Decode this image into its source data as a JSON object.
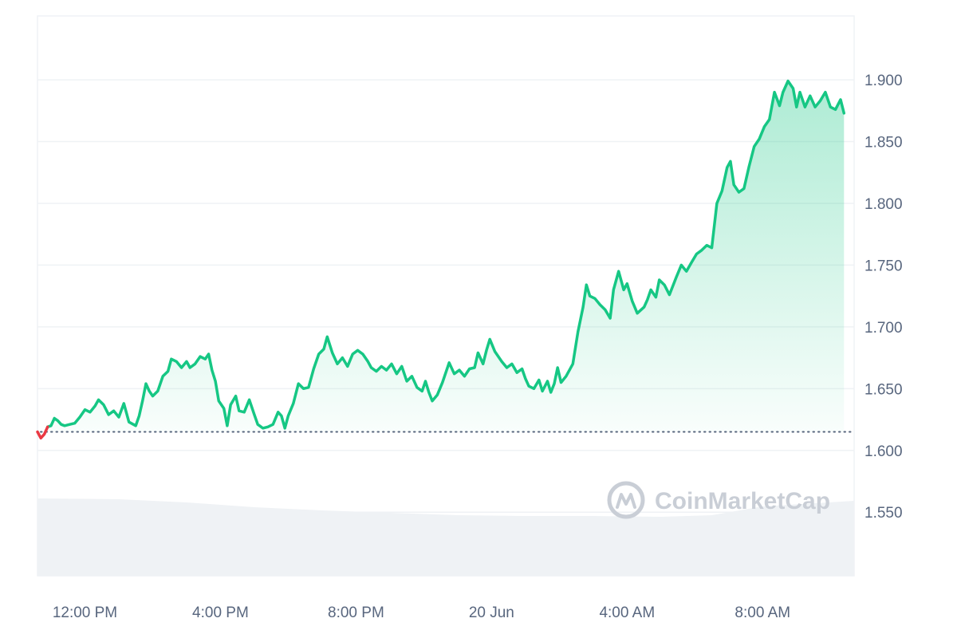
{
  "watermark": "CoinMarketCap",
  "colors": {
    "up": "#16c784",
    "down": "#ea3943",
    "grid": "#eff2f5",
    "text": "#58667e",
    "volume": "#eff2f5",
    "baseline": "#58667e"
  },
  "chart_data": {
    "type": "area",
    "xlabel": "",
    "ylabel": "",
    "x_ticks": [
      "12:00 PM",
      "4:00 PM",
      "8:00 PM",
      "20 Jun",
      "4:00 AM",
      "8:00 AM"
    ],
    "y_ticks": [
      "1.550",
      "1.600",
      "1.650",
      "1.700",
      "1.750",
      "1.800",
      "1.850",
      "1.900"
    ],
    "ylim": [
      1.4985,
      1.9517
    ],
    "x_hours_range": [
      -1.4,
      22.7
    ],
    "baseline_value": 1.615,
    "grid": true,
    "series": [
      {
        "values": [
          [
            -1.4,
            1.615
          ],
          [
            -1.3,
            1.61
          ],
          [
            -1.2,
            1.613
          ],
          [
            -1.1,
            1.619
          ],
          [
            -1.0,
            1.62
          ],
          [
            -0.9,
            1.626
          ],
          [
            -0.8,
            1.624
          ],
          [
            -0.7,
            1.621
          ],
          [
            -0.6,
            1.62
          ],
          [
            -0.45,
            1.621
          ],
          [
            -0.3,
            1.622
          ],
          [
            -0.15,
            1.627
          ],
          [
            0.0,
            1.633
          ],
          [
            0.15,
            1.631
          ],
          [
            0.3,
            1.636
          ],
          [
            0.4,
            1.641
          ],
          [
            0.55,
            1.637
          ],
          [
            0.7,
            1.629
          ],
          [
            0.85,
            1.632
          ],
          [
            1.0,
            1.627
          ],
          [
            1.15,
            1.638
          ],
          [
            1.3,
            1.623
          ],
          [
            1.5,
            1.62
          ],
          [
            1.6,
            1.628
          ],
          [
            1.7,
            1.64
          ],
          [
            1.8,
            1.654
          ],
          [
            1.9,
            1.648
          ],
          [
            2.0,
            1.644
          ],
          [
            2.15,
            1.648
          ],
          [
            2.3,
            1.66
          ],
          [
            2.45,
            1.664
          ],
          [
            2.55,
            1.674
          ],
          [
            2.7,
            1.672
          ],
          [
            2.85,
            1.667
          ],
          [
            3.0,
            1.672
          ],
          [
            3.1,
            1.667
          ],
          [
            3.25,
            1.67
          ],
          [
            3.4,
            1.676
          ],
          [
            3.55,
            1.674
          ],
          [
            3.65,
            1.678
          ],
          [
            3.75,
            1.665
          ],
          [
            3.85,
            1.656
          ],
          [
            3.95,
            1.64
          ],
          [
            4.1,
            1.634
          ],
          [
            4.2,
            1.62
          ],
          [
            4.3,
            1.637
          ],
          [
            4.45,
            1.644
          ],
          [
            4.55,
            1.632
          ],
          [
            4.7,
            1.631
          ],
          [
            4.85,
            1.641
          ],
          [
            5.0,
            1.629
          ],
          [
            5.1,
            1.621
          ],
          [
            5.25,
            1.618
          ],
          [
            5.4,
            1.619
          ],
          [
            5.55,
            1.621
          ],
          [
            5.7,
            1.631
          ],
          [
            5.8,
            1.628
          ],
          [
            5.9,
            1.618
          ],
          [
            6.0,
            1.628
          ],
          [
            6.15,
            1.638
          ],
          [
            6.3,
            1.654
          ],
          [
            6.45,
            1.65
          ],
          [
            6.6,
            1.651
          ],
          [
            6.75,
            1.666
          ],
          [
            6.9,
            1.678
          ],
          [
            7.05,
            1.682
          ],
          [
            7.15,
            1.692
          ],
          [
            7.3,
            1.679
          ],
          [
            7.45,
            1.67
          ],
          [
            7.6,
            1.675
          ],
          [
            7.75,
            1.668
          ],
          [
            7.9,
            1.678
          ],
          [
            8.05,
            1.681
          ],
          [
            8.2,
            1.678
          ],
          [
            8.35,
            1.672
          ],
          [
            8.45,
            1.667
          ],
          [
            8.6,
            1.664
          ],
          [
            8.75,
            1.668
          ],
          [
            8.9,
            1.665
          ],
          [
            9.05,
            1.67
          ],
          [
            9.2,
            1.662
          ],
          [
            9.35,
            1.668
          ],
          [
            9.5,
            1.656
          ],
          [
            9.65,
            1.66
          ],
          [
            9.8,
            1.651
          ],
          [
            9.95,
            1.648
          ],
          [
            10.05,
            1.656
          ],
          [
            10.15,
            1.647
          ],
          [
            10.25,
            1.64
          ],
          [
            10.4,
            1.645
          ],
          [
            10.55,
            1.655
          ],
          [
            10.75,
            1.671
          ],
          [
            10.9,
            1.662
          ],
          [
            11.05,
            1.665
          ],
          [
            11.2,
            1.66
          ],
          [
            11.35,
            1.666
          ],
          [
            11.5,
            1.667
          ],
          [
            11.6,
            1.679
          ],
          [
            11.75,
            1.67
          ],
          [
            11.85,
            1.681
          ],
          [
            11.95,
            1.69
          ],
          [
            12.1,
            1.68
          ],
          [
            12.3,
            1.672
          ],
          [
            12.45,
            1.667
          ],
          [
            12.6,
            1.67
          ],
          [
            12.75,
            1.663
          ],
          [
            12.9,
            1.666
          ],
          [
            13.0,
            1.658
          ],
          [
            13.1,
            1.652
          ],
          [
            13.25,
            1.65
          ],
          [
            13.4,
            1.657
          ],
          [
            13.5,
            1.648
          ],
          [
            13.65,
            1.656
          ],
          [
            13.75,
            1.647
          ],
          [
            13.85,
            1.654
          ],
          [
            13.95,
            1.667
          ],
          [
            14.05,
            1.655
          ],
          [
            14.2,
            1.66
          ],
          [
            14.4,
            1.67
          ],
          [
            14.55,
            1.696
          ],
          [
            14.7,
            1.716
          ],
          [
            14.8,
            1.734
          ],
          [
            14.9,
            1.725
          ],
          [
            15.05,
            1.723
          ],
          [
            15.2,
            1.718
          ],
          [
            15.35,
            1.714
          ],
          [
            15.5,
            1.707
          ],
          [
            15.6,
            1.73
          ],
          [
            15.75,
            1.745
          ],
          [
            15.9,
            1.73
          ],
          [
            16.0,
            1.735
          ],
          [
            16.15,
            1.721
          ],
          [
            16.3,
            1.711
          ],
          [
            16.5,
            1.716
          ],
          [
            16.6,
            1.722
          ],
          [
            16.7,
            1.73
          ],
          [
            16.85,
            1.724
          ],
          [
            16.95,
            1.738
          ],
          [
            17.1,
            1.734
          ],
          [
            17.25,
            1.726
          ],
          [
            17.45,
            1.74
          ],
          [
            17.6,
            1.75
          ],
          [
            17.75,
            1.745
          ],
          [
            17.9,
            1.752
          ],
          [
            18.05,
            1.759
          ],
          [
            18.2,
            1.762
          ],
          [
            18.35,
            1.766
          ],
          [
            18.5,
            1.764
          ],
          [
            18.65,
            1.8
          ],
          [
            18.8,
            1.81
          ],
          [
            18.95,
            1.829
          ],
          [
            19.05,
            1.834
          ],
          [
            19.15,
            1.815
          ],
          [
            19.3,
            1.809
          ],
          [
            19.45,
            1.812
          ],
          [
            19.6,
            1.83
          ],
          [
            19.75,
            1.846
          ],
          [
            19.9,
            1.852
          ],
          [
            20.05,
            1.862
          ],
          [
            20.2,
            1.868
          ],
          [
            20.35,
            1.89
          ],
          [
            20.5,
            1.879
          ],
          [
            20.6,
            1.89
          ],
          [
            20.75,
            1.899
          ],
          [
            20.9,
            1.893
          ],
          [
            21.0,
            1.878
          ],
          [
            21.1,
            1.89
          ],
          [
            21.25,
            1.878
          ],
          [
            21.4,
            1.887
          ],
          [
            21.55,
            1.878
          ],
          [
            21.7,
            1.883
          ],
          [
            21.85,
            1.89
          ],
          [
            22.0,
            1.878
          ],
          [
            22.15,
            1.876
          ],
          [
            22.3,
            1.884
          ],
          [
            22.4,
            1.873
          ]
        ]
      }
    ]
  }
}
